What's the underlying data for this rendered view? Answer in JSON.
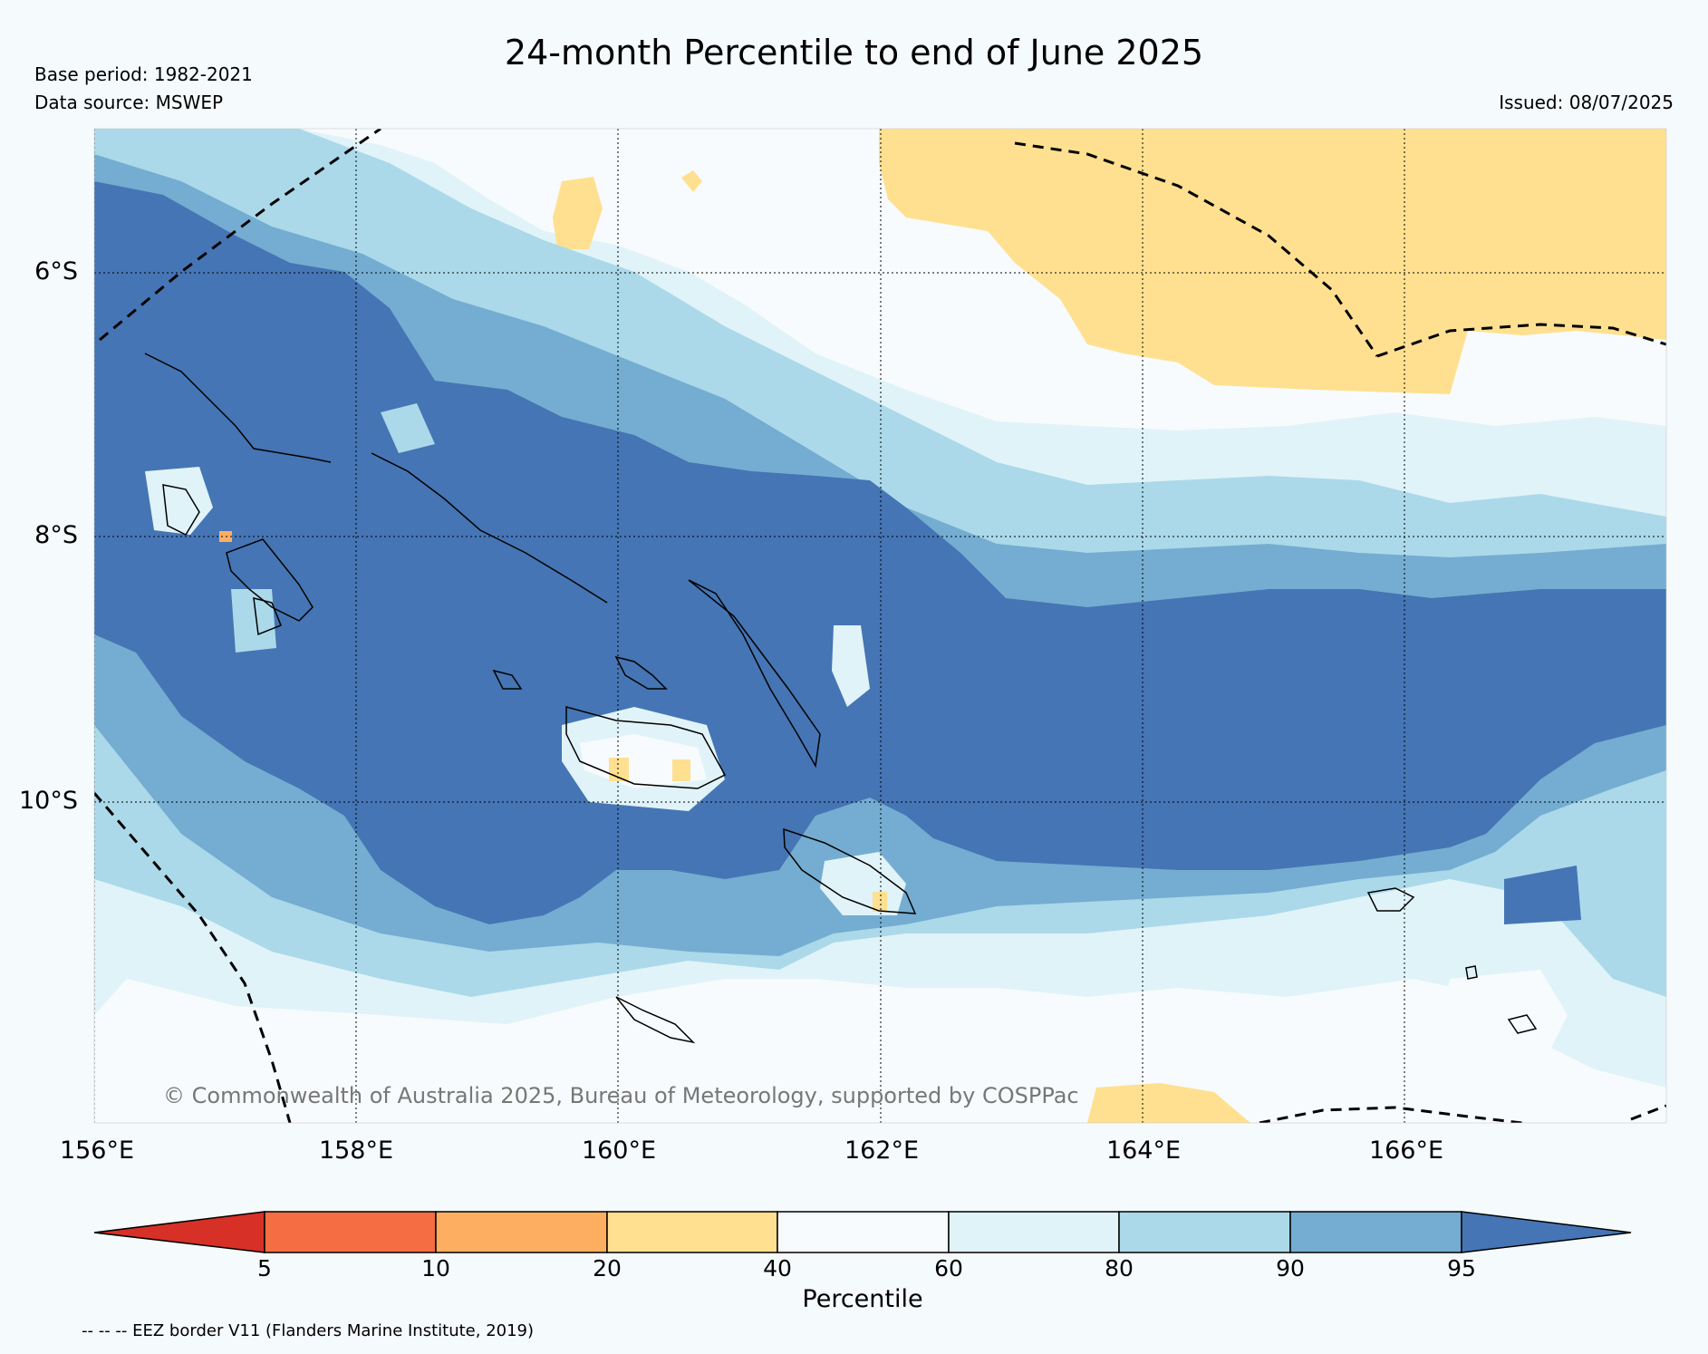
{
  "header": {
    "title": "24-month Percentile to end of June 2025",
    "base_period": "Base period: 1982-2021",
    "data_source": "Data source: MSWEP",
    "issued": "Issued: 08/07/2025"
  },
  "map": {
    "lat_labels": [
      "6°S",
      "8°S",
      "10°S"
    ],
    "lon_labels": [
      "156°E",
      "158°E",
      "160°E",
      "162°E",
      "164°E",
      "166°E"
    ],
    "extent": {
      "lon_min": 156,
      "lon_max": 168,
      "lat_min": -12.4,
      "lat_max": -4.9
    },
    "copyright": "© Commonwealth of Australia 2025, Bureau of Meteorology, supported by COSPPac"
  },
  "colorbar": {
    "label": "Percentile",
    "ticks": [
      "5",
      "10",
      "20",
      "40",
      "60",
      "80",
      "90",
      "95"
    ],
    "colors": {
      "lt5": "#d73027",
      "p5_10": "#f46d43",
      "p10_20": "#fdae61",
      "p20_40": "#fee090",
      "p40_60": "#f7fbfd",
      "p60_80": "#e0f3f8",
      "p80_90": "#abd9e9",
      "p90_95": "#74add1",
      "gt95": "#4575b4"
    }
  },
  "legend": {
    "eez_note": "-- -- -- EEZ border V11 (Flanders Marine Institute, 2019)"
  }
}
